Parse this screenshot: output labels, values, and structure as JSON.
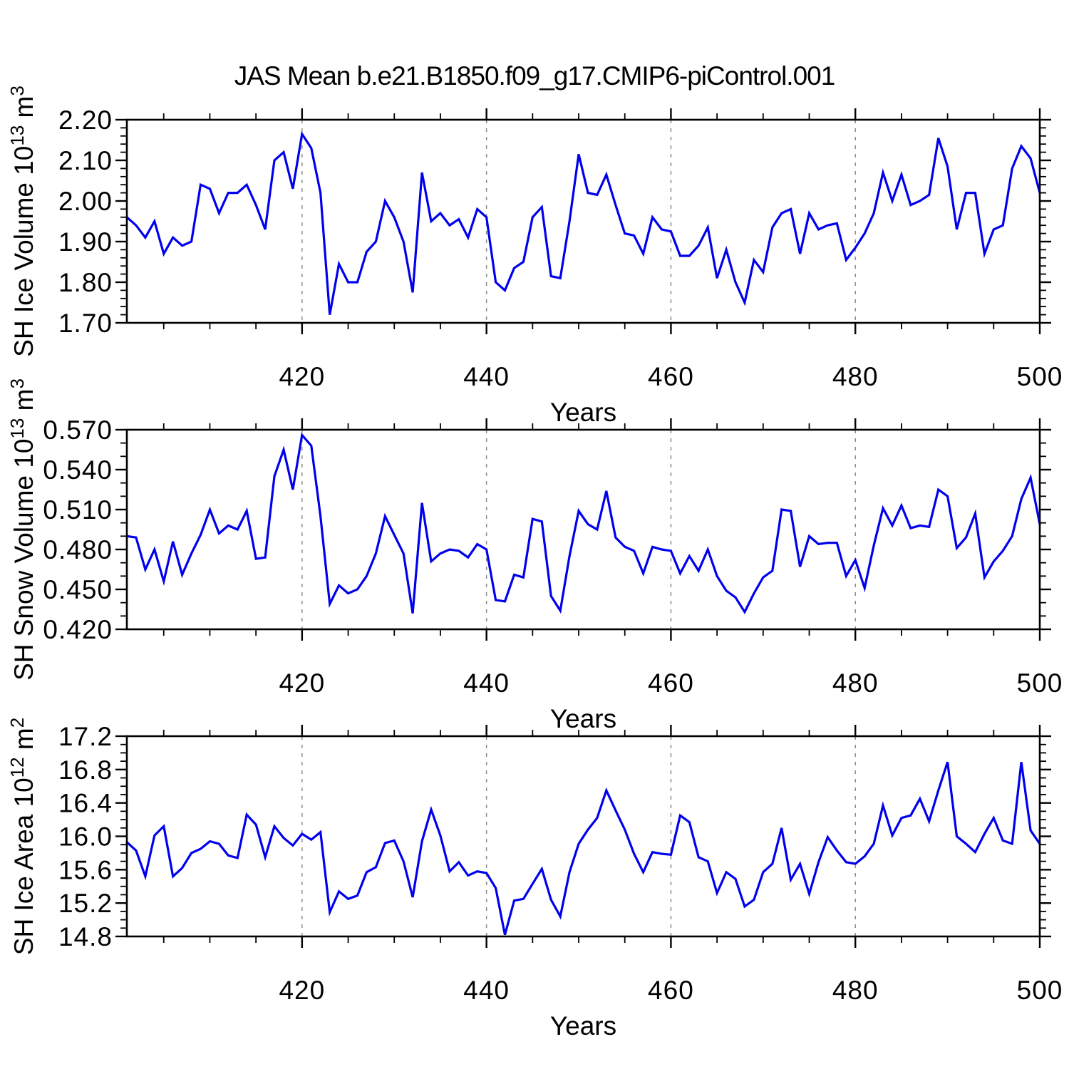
{
  "title": "JAS Mean b.e21.B1850.f09_g17.CMIP6-piControl.001",
  "line_color": "#0000EE",
  "grid_color": "#8a8a8a",
  "axis_color": "#000000",
  "chart_data": [
    {
      "type": "line",
      "title": "",
      "xlabel": "Years",
      "ylabel": "SH Ice Volume 10^13^ m^3^",
      "x_start": 401,
      "xlim": [
        401,
        500
      ],
      "ylim": [
        1.7,
        2.2
      ],
      "x_major_ticks": [
        420,
        440,
        460,
        480,
        500
      ],
      "x_minor_step": 5,
      "y_major_step": 0.1,
      "y_minor_step": 0.02,
      "y_decimals": 2,
      "grid_x": [
        420,
        440,
        460,
        480
      ],
      "legend": "none",
      "grid": "x-dashed",
      "values": [
        1.96,
        1.94,
        1.91,
        1.95,
        1.87,
        1.91,
        1.89,
        1.9,
        2.04,
        2.03,
        1.97,
        2.02,
        2.02,
        2.04,
        1.99,
        1.93,
        2.1,
        2.12,
        2.03,
        2.165,
        2.13,
        2.02,
        1.72,
        1.845,
        1.8,
        1.8,
        1.875,
        1.9,
        2.0,
        1.96,
        1.9,
        1.775,
        2.07,
        1.95,
        1.97,
        1.94,
        1.955,
        1.91,
        1.98,
        1.96,
        1.8,
        1.78,
        1.835,
        1.85,
        1.96,
        1.985,
        1.815,
        1.81,
        1.95,
        2.115,
        2.02,
        2.015,
        2.065,
        1.99,
        1.92,
        1.915,
        1.87,
        1.96,
        1.93,
        1.925,
        1.865,
        1.865,
        1.89,
        1.935,
        1.81,
        1.88,
        1.8,
        1.75,
        1.855,
        1.825,
        1.935,
        1.97,
        1.98,
        1.87,
        1.97,
        1.93,
        1.94,
        1.945,
        1.855,
        1.885,
        1.92,
        1.97,
        2.07,
        2.0,
        2.065,
        1.99,
        2.0,
        2.015,
        2.155,
        2.085,
        1.93,
        2.02,
        2.02,
        1.87,
        1.93,
        1.94,
        2.08,
        2.135,
        2.105,
        2.02
      ]
    },
    {
      "type": "line",
      "title": "",
      "xlabel": "Years",
      "ylabel": "SH Snow Volume 10^13^ m^3^",
      "x_start": 401,
      "xlim": [
        401,
        500
      ],
      "ylim": [
        0.42,
        0.57
      ],
      "x_major_ticks": [
        420,
        440,
        460,
        480,
        500
      ],
      "x_minor_step": 5,
      "y_major_step": 0.03,
      "y_minor_step": 0.01,
      "y_decimals": 3,
      "grid_x": [
        420,
        440,
        460,
        480
      ],
      "legend": "none",
      "grid": "x-dashed",
      "values": [
        0.49,
        0.489,
        0.465,
        0.48,
        0.456,
        0.486,
        0.461,
        0.477,
        0.491,
        0.51,
        0.492,
        0.498,
        0.495,
        0.509,
        0.473,
        0.474,
        0.535,
        0.555,
        0.525,
        0.566,
        0.558,
        0.505,
        0.439,
        0.453,
        0.447,
        0.45,
        0.46,
        0.477,
        0.505,
        0.491,
        0.477,
        0.432,
        0.515,
        0.471,
        0.477,
        0.48,
        0.479,
        0.474,
        0.484,
        0.48,
        0.442,
        0.441,
        0.461,
        0.459,
        0.503,
        0.501,
        0.445,
        0.434,
        0.475,
        0.509,
        0.499,
        0.495,
        0.524,
        0.489,
        0.482,
        0.479,
        0.462,
        0.482,
        0.48,
        0.479,
        0.462,
        0.475,
        0.464,
        0.48,
        0.46,
        0.449,
        0.444,
        0.433,
        0.447,
        0.459,
        0.464,
        0.51,
        0.509,
        0.467,
        0.49,
        0.484,
        0.485,
        0.485,
        0.46,
        0.472,
        0.451,
        0.483,
        0.511,
        0.498,
        0.513,
        0.496,
        0.498,
        0.497,
        0.525,
        0.52,
        0.481,
        0.489,
        0.507,
        0.459,
        0.471,
        0.479,
        0.49,
        0.518,
        0.534,
        0.499
      ]
    },
    {
      "type": "line",
      "title": "",
      "xlabel": "Years",
      "ylabel": "SH Ice Area 10^12^ m^2^",
      "x_start": 401,
      "xlim": [
        401,
        500
      ],
      "ylim": [
        14.8,
        17.2
      ],
      "x_major_ticks": [
        420,
        440,
        460,
        480,
        500
      ],
      "x_minor_step": 5,
      "y_major_step": 0.4,
      "y_minor_step": 0.1,
      "y_decimals": 1,
      "grid_x": [
        420,
        440,
        460,
        480
      ],
      "legend": "none",
      "grid": "x-dashed",
      "values": [
        15.93,
        15.83,
        15.52,
        16.01,
        16.12,
        15.52,
        15.62,
        15.8,
        15.85,
        15.94,
        15.91,
        15.77,
        15.74,
        16.26,
        16.14,
        15.75,
        16.12,
        15.98,
        15.89,
        16.03,
        15.96,
        16.05,
        15.09,
        15.34,
        15.25,
        15.29,
        15.57,
        15.63,
        15.92,
        15.95,
        15.7,
        15.27,
        15.94,
        16.32,
        16.01,
        15.58,
        15.69,
        15.53,
        15.58,
        15.56,
        15.38,
        14.82,
        15.23,
        15.25,
        15.43,
        15.61,
        15.24,
        15.04,
        15.57,
        15.91,
        16.08,
        16.22,
        16.55,
        16.31,
        16.08,
        15.79,
        15.57,
        15.81,
        15.79,
        15.78,
        16.25,
        16.17,
        15.75,
        15.7,
        15.32,
        15.57,
        15.49,
        15.16,
        15.24,
        15.57,
        15.67,
        16.1,
        15.48,
        15.67,
        15.31,
        15.69,
        15.99,
        15.83,
        15.69,
        15.67,
        15.76,
        15.91,
        16.37,
        16.01,
        16.22,
        16.25,
        16.45,
        16.18,
        16.55,
        16.89,
        16.0,
        15.91,
        15.81,
        16.03,
        16.22,
        15.95,
        15.91,
        16.89,
        16.07,
        15.91
      ]
    }
  ]
}
